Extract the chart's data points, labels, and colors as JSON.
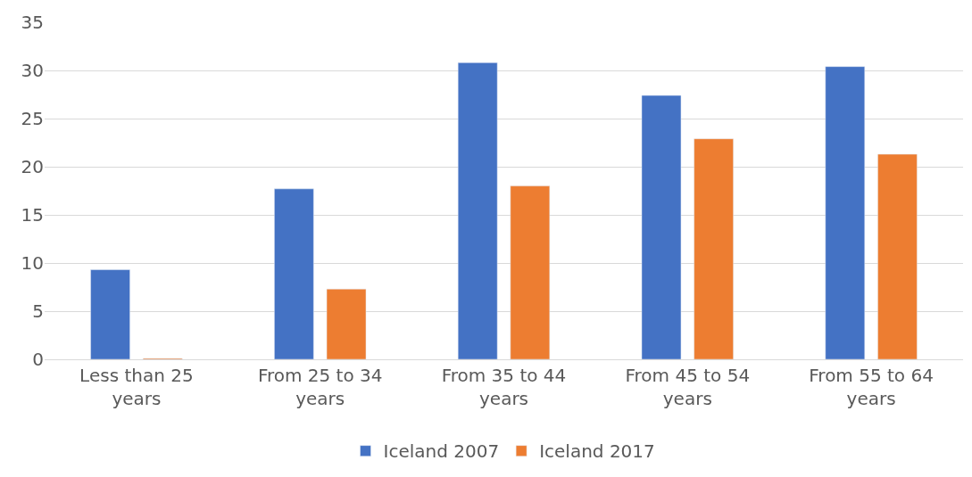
{
  "chart_data": {
    "type": "bar",
    "categories": [
      "Less than 25 years",
      "From 25 to 34 years",
      "From 35 to 44 years",
      "From 45 to 54 years",
      "From 55 to 64 years"
    ],
    "series": [
      {
        "name": "Iceland 2007",
        "color": "#4472c4",
        "values": [
          9.3,
          17.7,
          30.8,
          27.4,
          30.4
        ]
      },
      {
        "name": "Iceland 2017",
        "color": "#ed7d31",
        "values": [
          0.1,
          7.3,
          18.0,
          22.9,
          21.3
        ]
      }
    ],
    "ylim": [
      0,
      35
    ],
    "yticks": [
      0,
      5,
      10,
      15,
      20,
      25,
      30,
      35
    ],
    "grid": "y",
    "legend": "bottom"
  }
}
